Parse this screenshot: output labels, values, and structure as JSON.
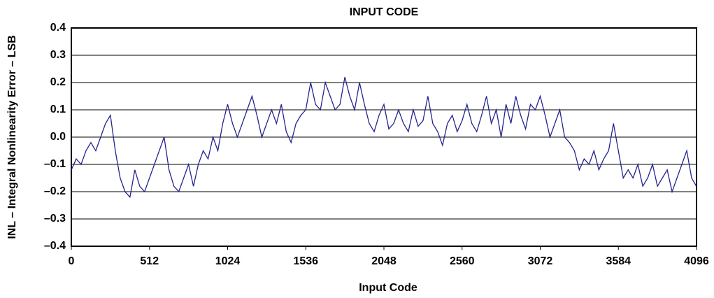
{
  "chart_data": {
    "type": "line",
    "title": "INPUT CODE",
    "xlabel": "Input Code",
    "ylabel": "INL – Integral Nonlinearity Error – LSB",
    "xlim": [
      0,
      4096
    ],
    "xticks": [
      0,
      512,
      1024,
      1536,
      2048,
      2560,
      3072,
      3584,
      4096
    ],
    "ylim": [
      -0.4,
      0.4
    ],
    "yticks": [
      {
        "value": -0.4,
        "label": "–0.4"
      },
      {
        "value": -0.3,
        "label": "–0.3"
      },
      {
        "value": -0.2,
        "label": "–0.2"
      },
      {
        "value": -0.1,
        "label": "–0.1"
      },
      {
        "value": 0,
        "label": "0.0"
      },
      0.1,
      0.2,
      0.3,
      0.4
    ],
    "grid": true,
    "x": [
      0,
      32,
      64,
      96,
      128,
      160,
      192,
      224,
      256,
      288,
      320,
      352,
      384,
      416,
      448,
      480,
      512,
      544,
      576,
      608,
      640,
      672,
      704,
      736,
      768,
      800,
      832,
      864,
      896,
      928,
      960,
      992,
      1024,
      1056,
      1088,
      1120,
      1152,
      1184,
      1216,
      1248,
      1280,
      1312,
      1344,
      1376,
      1408,
      1440,
      1472,
      1504,
      1536,
      1568,
      1600,
      1632,
      1664,
      1696,
      1728,
      1760,
      1792,
      1824,
      1856,
      1888,
      1920,
      1952,
      1984,
      2016,
      2048,
      2080,
      2112,
      2144,
      2176,
      2208,
      2240,
      2272,
      2304,
      2336,
      2368,
      2400,
      2432,
      2464,
      2496,
      2528,
      2560,
      2592,
      2624,
      2656,
      2688,
      2720,
      2752,
      2784,
      2816,
      2848,
      2880,
      2912,
      2944,
      2976,
      3008,
      3040,
      3072,
      3104,
      3136,
      3168,
      3200,
      3232,
      3264,
      3296,
      3328,
      3360,
      3392,
      3424,
      3456,
      3488,
      3520,
      3552,
      3584,
      3616,
      3648,
      3680,
      3712,
      3744,
      3776,
      3808,
      3840,
      3872,
      3904,
      3936,
      3968,
      4000,
      4032,
      4064,
      4095
    ],
    "series": [
      {
        "name": "INL",
        "color": "#24248f",
        "values": [
          -0.12,
          -0.08,
          -0.1,
          -0.05,
          -0.02,
          -0.05,
          0.0,
          0.05,
          0.08,
          -0.05,
          -0.15,
          -0.2,
          -0.22,
          -0.12,
          -0.18,
          -0.2,
          -0.15,
          -0.1,
          -0.05,
          0.0,
          -0.12,
          -0.18,
          -0.2,
          -0.15,
          -0.1,
          -0.18,
          -0.1,
          -0.05,
          -0.08,
          0.0,
          -0.05,
          0.05,
          0.12,
          0.05,
          0.0,
          0.05,
          0.1,
          0.15,
          0.08,
          0.0,
          0.05,
          0.1,
          0.05,
          0.12,
          0.02,
          -0.02,
          0.05,
          0.08,
          0.1,
          0.2,
          0.12,
          0.1,
          0.2,
          0.15,
          0.1,
          0.12,
          0.22,
          0.15,
          0.1,
          0.2,
          0.12,
          0.05,
          0.02,
          0.08,
          0.12,
          0.03,
          0.05,
          0.1,
          0.05,
          0.02,
          0.1,
          0.04,
          0.06,
          0.15,
          0.05,
          0.02,
          -0.03,
          0.05,
          0.08,
          0.02,
          0.06,
          0.12,
          0.05,
          0.02,
          0.08,
          0.15,
          0.05,
          0.1,
          0.0,
          0.12,
          0.05,
          0.15,
          0.08,
          0.03,
          0.12,
          0.1,
          0.15,
          0.08,
          0.0,
          0.05,
          0.1,
          0.0,
          -0.02,
          -0.05,
          -0.12,
          -0.08,
          -0.1,
          -0.05,
          -0.12,
          -0.08,
          -0.05,
          0.05,
          -0.05,
          -0.15,
          -0.12,
          -0.15,
          -0.1,
          -0.18,
          -0.15,
          -0.1,
          -0.18,
          -0.15,
          -0.12,
          -0.2,
          -0.15,
          -0.1,
          -0.05,
          -0.15,
          -0.18
        ]
      }
    ]
  }
}
